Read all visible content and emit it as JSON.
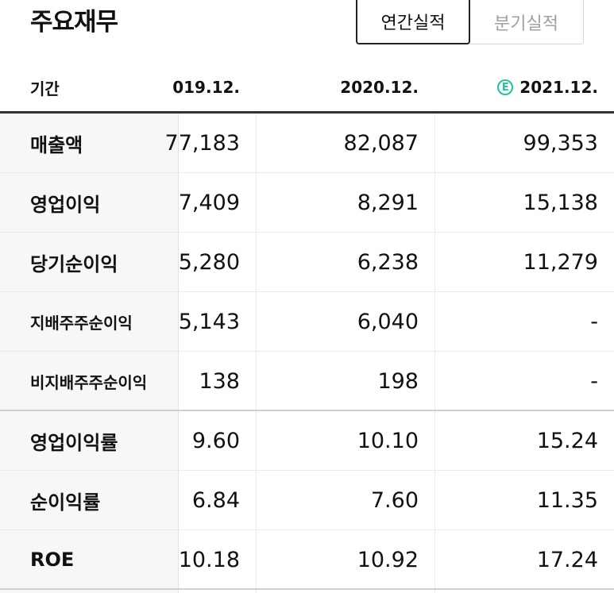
{
  "page": {
    "title": "주요재무"
  },
  "tabs": {
    "annual": "연간실적",
    "quarterly": "분기실적"
  },
  "header": {
    "period_label": "기간",
    "years": [
      "019.12.",
      "2020.12.",
      "2021.12."
    ],
    "estimate_mark": "E"
  },
  "rows": [
    {
      "label": "매출액",
      "values": [
        "77,183",
        "82,087",
        "99,353"
      ]
    },
    {
      "label": "영업이익",
      "values": [
        "7,409",
        "8,291",
        "15,138"
      ]
    },
    {
      "label": "당기순이익",
      "values": [
        "5,280",
        "6,238",
        "11,279"
      ]
    },
    {
      "label": "지배주주순이익",
      "values": [
        "5,143",
        "6,040",
        "-"
      ]
    },
    {
      "label": "비지배주주순이익",
      "values": [
        "138",
        "198",
        "-"
      ]
    },
    {
      "label": "영업이익률",
      "values": [
        "9.60",
        "10.10",
        "15.24"
      ]
    },
    {
      "label": "순이익률",
      "values": [
        "6.84",
        "7.60",
        "11.35"
      ]
    },
    {
      "label": "ROE",
      "values": [
        "10.18",
        "10.92",
        "17.24"
      ]
    }
  ],
  "colors": {
    "estimate_accent": "#1ec79b",
    "header_rule": "#333333",
    "label_column_bg": "#f7f6f9"
  }
}
